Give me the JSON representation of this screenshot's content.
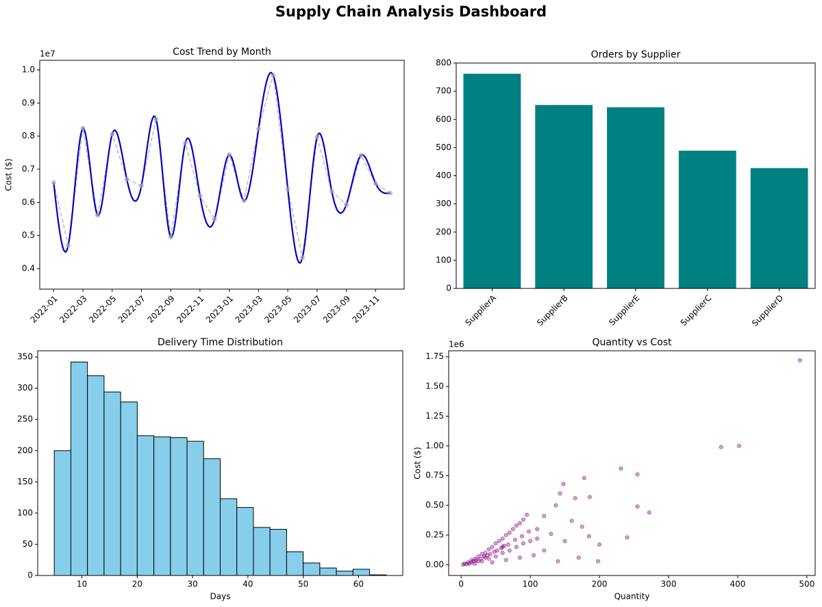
{
  "title": "Supply Chain Analysis Dashboard",
  "chart_data": [
    {
      "type": "line",
      "title": "Cost Trend by Month",
      "ylabel": "Cost ($)",
      "offset_label": "1e7",
      "categories": [
        "2022-01",
        null,
        "2022-03",
        null,
        "2022-05",
        null,
        "2022-07",
        null,
        "2022-09",
        null,
        "2022-11",
        null,
        "2023-01",
        null,
        "2023-03",
        null,
        "2023-05",
        null,
        "2023-07",
        null,
        "2023-09",
        null,
        "2023-11",
        null
      ],
      "series": [
        {
          "color": "#0000cc",
          "marker_color": "#aaaaaa",
          "values": [
            0.66,
            0.47,
            0.824,
            0.561,
            0.806,
            0.67,
            0.65,
            0.851,
            0.495,
            0.78,
            0.62,
            0.549,
            0.744,
            0.605,
            0.822,
            0.984,
            0.64,
            0.433,
            0.797,
            0.634,
            0.593,
            0.742,
            0.657,
            0.628
          ]
        }
      ],
      "ylim": [
        0.338,
        1.029
      ],
      "yticks": [
        0.4,
        0.5,
        0.6,
        0.7,
        0.8,
        0.9,
        {
          "value": 1.0,
          "label": "1.0"
        }
      ]
    },
    {
      "type": "bar",
      "title": "Orders by Supplier",
      "color": "#008080",
      "categories": [
        "SupplierA",
        "SupplierB",
        "SupplierE",
        "SupplierC",
        "SupplierD"
      ],
      "values": [
        762,
        651,
        643,
        489,
        427
      ],
      "ylim": [
        0,
        800
      ],
      "yticks": [
        0,
        100,
        200,
        300,
        400,
        500,
        600,
        700,
        800
      ]
    },
    {
      "type": "histogram",
      "title": "Delivery Time Distribution",
      "xlabel": "Days",
      "color": "#87ceeb",
      "bins": [
        5,
        8,
        11,
        14,
        17,
        20,
        23,
        26,
        29,
        32,
        35,
        38,
        41,
        44,
        47,
        50,
        53,
        56,
        59,
        62,
        65
      ],
      "values": [
        200,
        342,
        320,
        294,
        278,
        224,
        222,
        221,
        215,
        187,
        123,
        109,
        77,
        74,
        38,
        20,
        12,
        7,
        10,
        1
      ],
      "xlim": [
        2,
        68
      ],
      "xticks": [
        10,
        20,
        30,
        40,
        50,
        60
      ],
      "ylim": [
        0,
        360
      ],
      "yticks": [
        0,
        50,
        100,
        150,
        200,
        250,
        300,
        350
      ]
    },
    {
      "type": "scatter",
      "title": "Quantity vs Cost",
      "xlabel": "Quantity",
      "ylabel": "Cost ($)",
      "offset_label": "1e6",
      "color": "#800080",
      "x": [
        490,
        376,
        402,
        231,
        255,
        178,
        148,
        255,
        272,
        240,
        198,
        186,
        165,
        143,
        137,
        160,
        175,
        185,
        200,
        120,
        95,
        110,
        130,
        150,
        170,
        140,
        5,
        10,
        15,
        20,
        25,
        30,
        35,
        40,
        45,
        50,
        55,
        60,
        65,
        70,
        75,
        80,
        85,
        90,
        20,
        30,
        40,
        50,
        60,
        70,
        80,
        90,
        100,
        110,
        45,
        65,
        85,
        105,
        120,
        60,
        35,
        25,
        12,
        8,
        3,
        18,
        28,
        38,
        48,
        58,
        68,
        78,
        88,
        98,
        15,
        22,
        33,
        42,
        52,
        62
      ],
      "values": [
        1.72,
        0.99,
        1.0,
        0.81,
        0.76,
        0.73,
        0.68,
        0.49,
        0.44,
        0.23,
        0.03,
        0.57,
        0.56,
        0.6,
        0.5,
        0.37,
        0.32,
        0.24,
        0.17,
        0.41,
        0.42,
        0.3,
        0.26,
        0.2,
        0.06,
        0.03,
        0.01,
        0.02,
        0.04,
        0.05,
        0.07,
        0.09,
        0.1,
        0.13,
        0.15,
        0.18,
        0.2,
        0.22,
        0.25,
        0.27,
        0.3,
        0.33,
        0.35,
        0.38,
        0.01,
        0.03,
        0.05,
        0.07,
        0.1,
        0.12,
        0.15,
        0.18,
        0.2,
        0.22,
        0.02,
        0.04,
        0.06,
        0.08,
        0.12,
        0.15,
        0.06,
        0.03,
        0.01,
        0.005,
        0.002,
        0.03,
        0.05,
        0.08,
        0.11,
        0.14,
        0.17,
        0.21,
        0.24,
        0.28,
        0.02,
        0.04,
        0.07,
        0.09,
        0.12,
        0.16
      ],
      "xlim": [
        -18,
        512
      ],
      "xticks": [
        0,
        100,
        200,
        300,
        400,
        500
      ],
      "ylim": [
        -0.09,
        1.8
      ],
      "yticks": [
        {
          "value": 0,
          "label": "0.00"
        },
        0.25,
        {
          "value": 0.5,
          "label": "0.50"
        },
        0.75,
        {
          "value": 1.0,
          "label": "1.00"
        },
        1.25,
        {
          "value": 1.5,
          "label": "1.50"
        },
        1.75
      ]
    }
  ]
}
